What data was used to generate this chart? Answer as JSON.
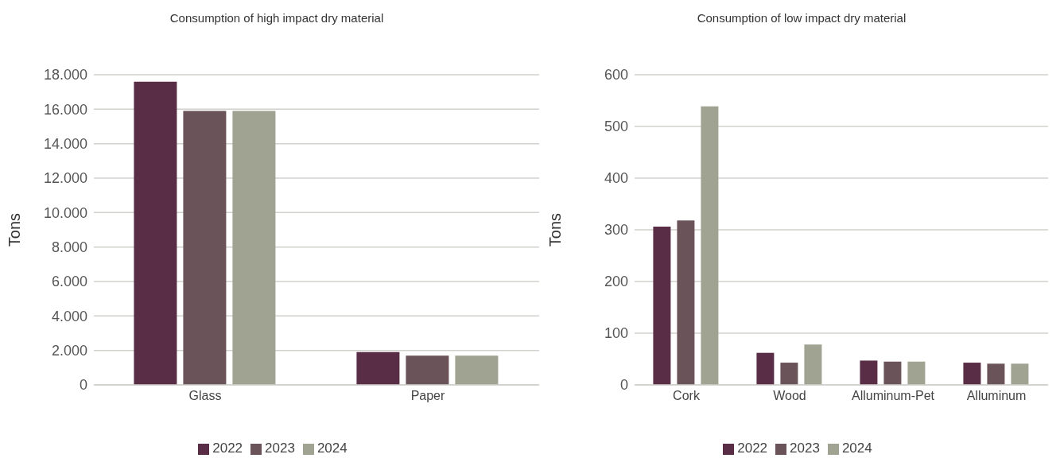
{
  "chart_data": [
    {
      "type": "bar",
      "title": "Consumption of high impact dry material",
      "ylabel": "Tons",
      "categories": [
        "Glass",
        "Paper"
      ],
      "series": [
        {
          "name": "2022",
          "color": "#5a2d46",
          "values": [
            17600,
            1900
          ]
        },
        {
          "name": "2023",
          "color": "#6b535a",
          "values": [
            15900,
            1700
          ]
        },
        {
          "name": "2024",
          "color": "#a0a391",
          "values": [
            15900,
            1700
          ]
        }
      ],
      "ylim": [
        0,
        18000
      ],
      "yticks": [
        0,
        {
          "value": 2000,
          "label": "2.000"
        },
        {
          "value": 4000,
          "label": "4.000"
        },
        {
          "value": 6000,
          "label": "6.000"
        },
        {
          "value": 8000,
          "label": "8.000"
        },
        {
          "value": 10000,
          "label": "10.000"
        },
        {
          "value": 12000,
          "label": "12.000"
        },
        {
          "value": 14000,
          "label": "14.000"
        },
        {
          "value": 16000,
          "label": "16.000"
        },
        {
          "value": 18000,
          "label": "18.000"
        }
      ],
      "grid": "y",
      "legend": "bottom"
    },
    {
      "type": "bar",
      "title": "Consumption of low impact dry material",
      "ylabel": "Tons",
      "categories": [
        "Cork",
        "Wood",
        "Alluminum-Pet",
        "Alluminum"
      ],
      "series": [
        {
          "name": "2022",
          "color": "#5a2d46",
          "values": [
            306,
            62,
            47,
            43
          ]
        },
        {
          "name": "2023",
          "color": "#6b535a",
          "values": [
            318,
            43,
            45,
            41
          ]
        },
        {
          "name": "2024",
          "color": "#a0a391",
          "values": [
            539,
            78,
            45,
            41
          ]
        }
      ],
      "ylim": [
        0,
        600
      ],
      "yticks": [
        0,
        100,
        200,
        300,
        400,
        500,
        600
      ],
      "grid": "y",
      "legend": "bottom"
    }
  ]
}
